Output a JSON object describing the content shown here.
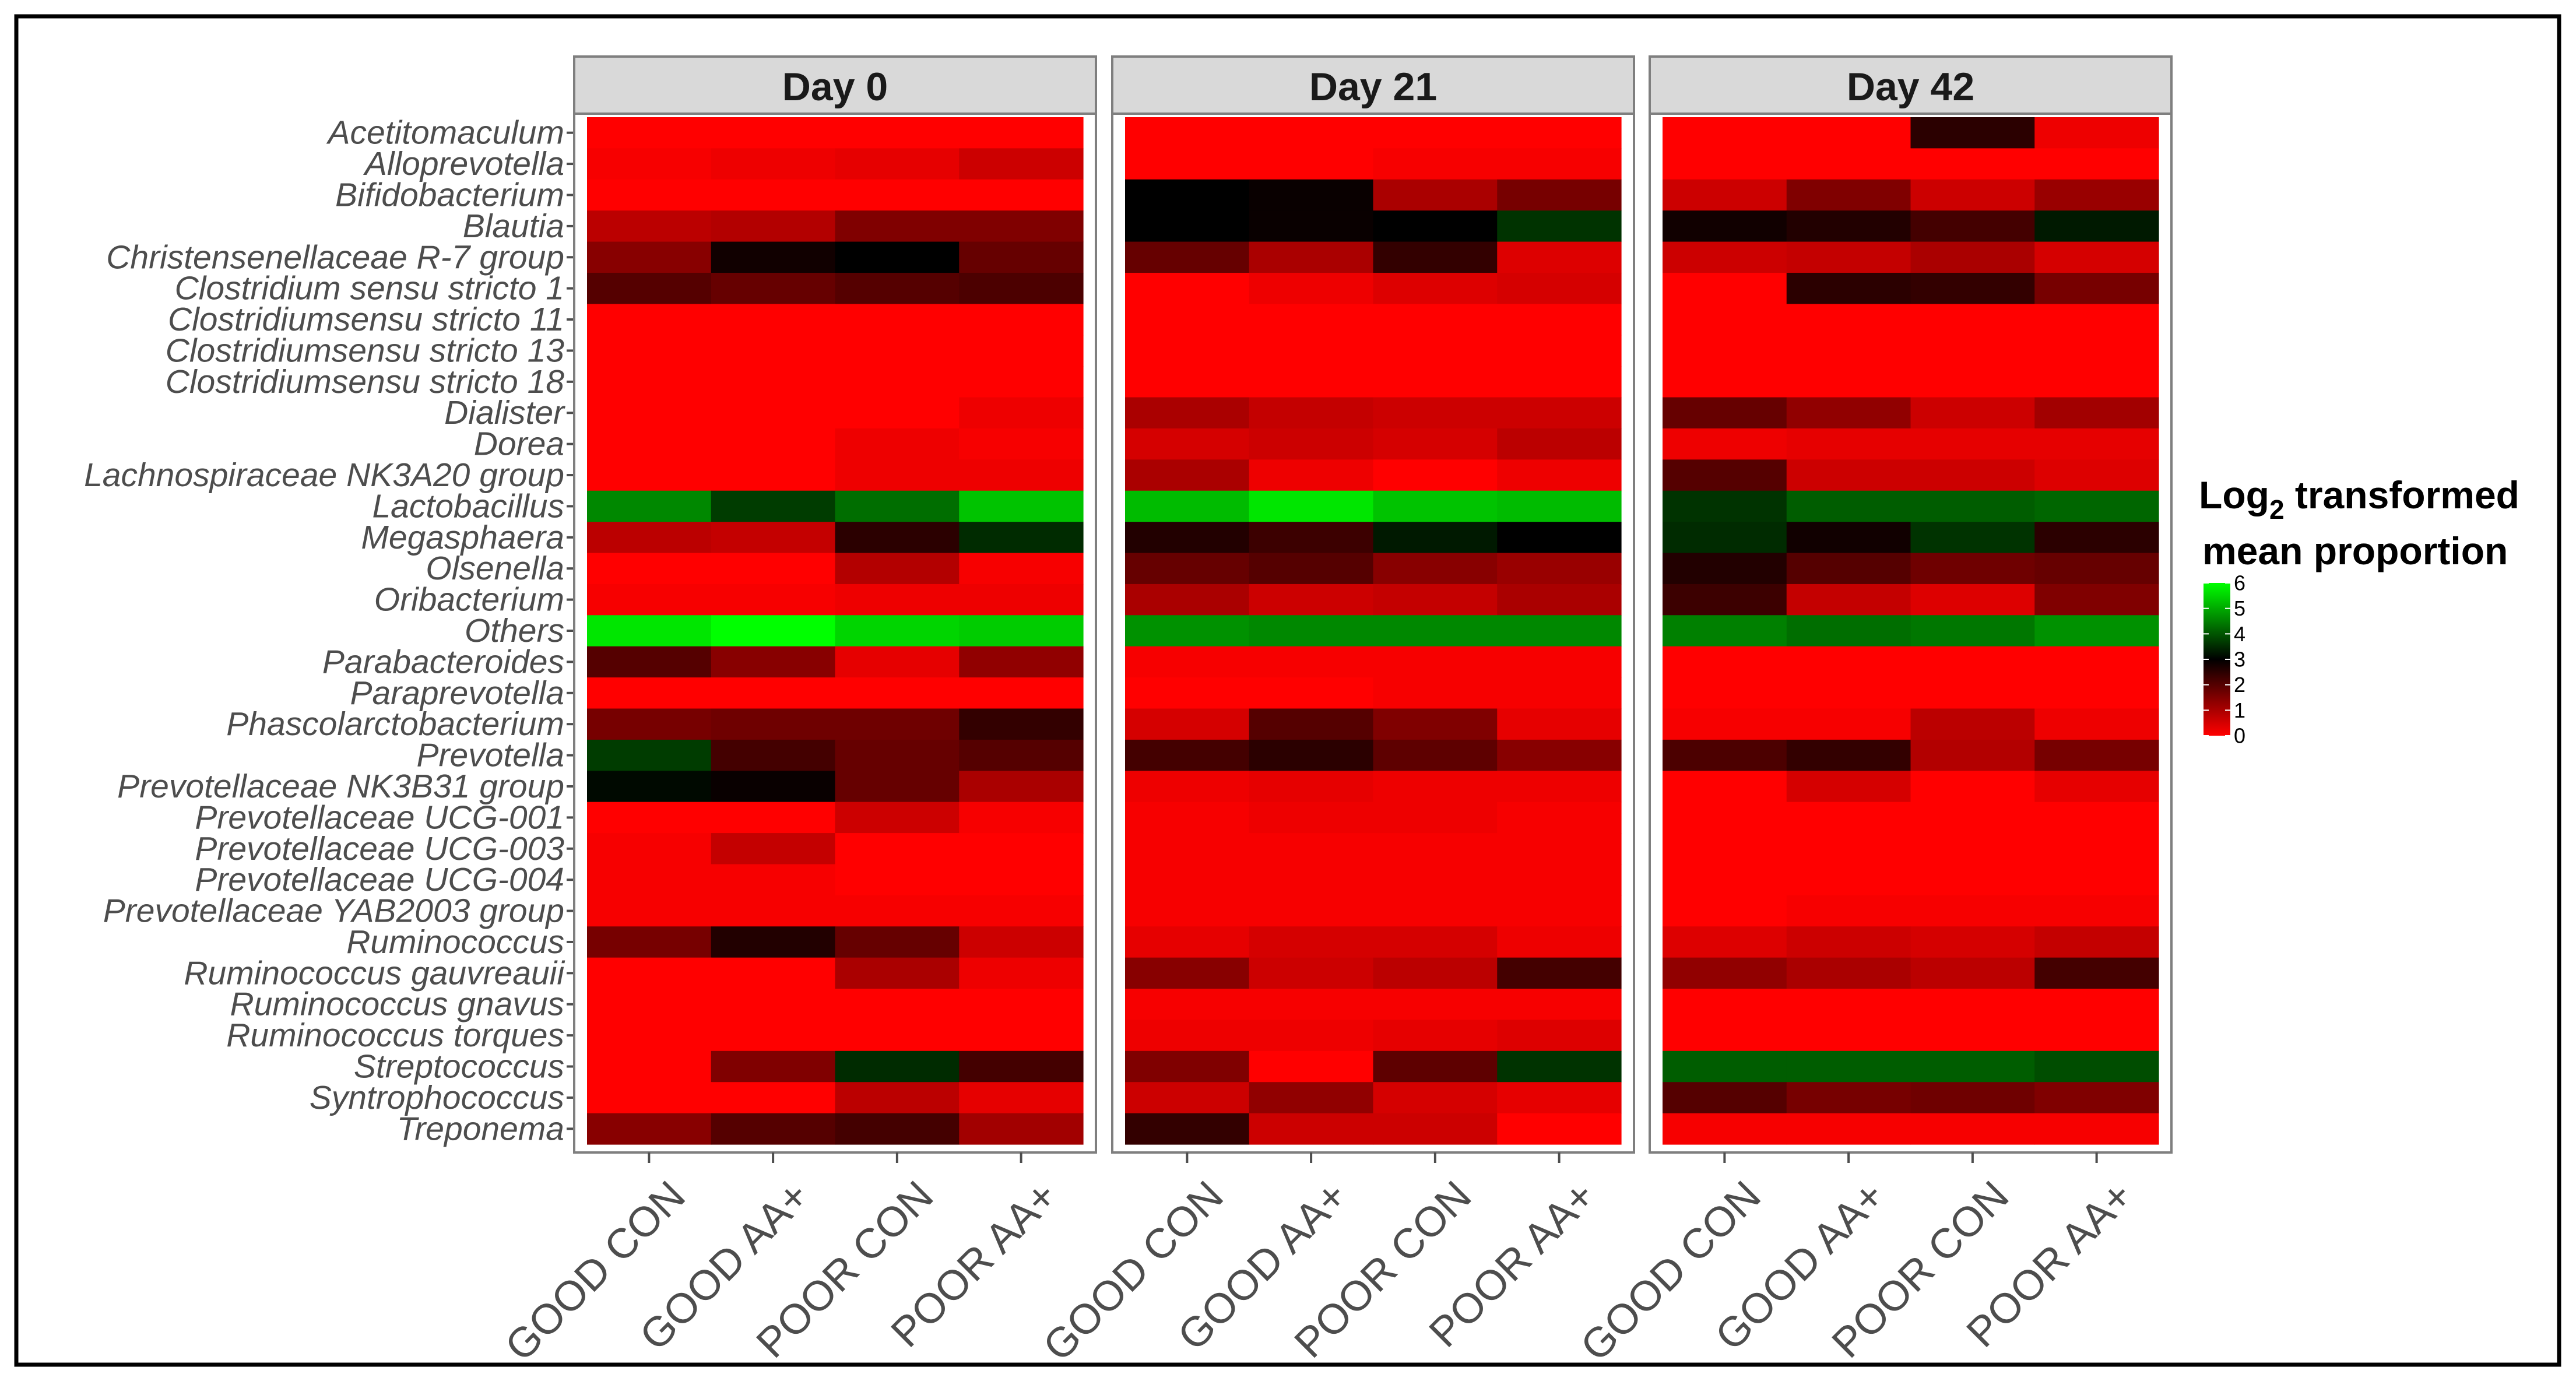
{
  "chart_data": {
    "type": "heatmap",
    "facets": [
      "Day 0",
      "Day 21",
      "Day 42"
    ],
    "groups": [
      "GOOD CON",
      "GOOD AA+",
      "POOR CON",
      "POOR AA+"
    ],
    "genera": [
      "Acetitomaculum",
      "Alloprevotella",
      "Bifidobacterium",
      "Blautia",
      "Christensenellaceae R-7 group",
      "Clostridium sensu stricto 1",
      "Clostridiumsensu stricto 11",
      "Clostridiumsensu stricto 13",
      "Clostridiumsensu stricto 18",
      "Dialister",
      "Dorea",
      "Lachnospiraceae NK3A20 group",
      "Lactobacillus",
      "Megasphaera",
      "Olsenella",
      "Oribacterium",
      "Others",
      "Parabacteroides",
      "Paraprevotella",
      "Phascolarctobacterium",
      "Prevotella",
      "Prevotellaceae NK3B31 group",
      "Prevotellaceae UCG-001",
      "Prevotellaceae UCG-003",
      "Prevotellaceae UCG-004",
      "Prevotellaceae YAB2003 group",
      "Ruminococcus",
      "Ruminococcus gauvreauii",
      "Ruminococcus gnavus",
      "Ruminococcus torques",
      "Streptococcus",
      "Syntrophococcus",
      "Treponema"
    ],
    "values": {
      "Day 0": [
        [
          0.0,
          0.0,
          0.0,
          0.0
        ],
        [
          0.1,
          0.2,
          0.3,
          0.6
        ],
        [
          0.0,
          0.0,
          0.0,
          0.0
        ],
        [
          0.8,
          0.9,
          1.5,
          1.5
        ],
        [
          1.4,
          2.8,
          3.0,
          1.8
        ],
        [
          2.0,
          1.8,
          2.0,
          2.1
        ],
        [
          0.0,
          0.0,
          0.0,
          0.0
        ],
        [
          0.0,
          0.0,
          0.0,
          0.0
        ],
        [
          0.0,
          0.0,
          0.0,
          0.0
        ],
        [
          0.0,
          0.0,
          0.0,
          0.2
        ],
        [
          0.0,
          0.0,
          0.2,
          0.1
        ],
        [
          0.0,
          0.0,
          0.2,
          0.2
        ],
        [
          4.6,
          3.7,
          4.3,
          5.3
        ],
        [
          0.8,
          0.7,
          2.5,
          3.5
        ],
        [
          0.0,
          0.0,
          0.9,
          0.1
        ],
        [
          0.1,
          0.1,
          0.2,
          0.2
        ],
        [
          5.7,
          6.0,
          5.5,
          5.4
        ],
        [
          2.0,
          1.4,
          0.3,
          1.3
        ],
        [
          0.0,
          0.0,
          0.0,
          0.0
        ],
        [
          1.6,
          1.7,
          1.7,
          2.4
        ],
        [
          3.7,
          2.2,
          1.8,
          2.0
        ],
        [
          3.1,
          2.9,
          1.8,
          1.0
        ],
        [
          0.0,
          0.0,
          0.6,
          0.1
        ],
        [
          0.1,
          0.7,
          0.0,
          0.0
        ],
        [
          0.1,
          0.1,
          0.0,
          0.0
        ],
        [
          0.1,
          0.1,
          0.1,
          0.1
        ],
        [
          1.6,
          2.6,
          1.8,
          0.6
        ],
        [
          0.0,
          0.0,
          1.0,
          0.2
        ],
        [
          0.0,
          0.0,
          0.0,
          0.0
        ],
        [
          0.0,
          0.0,
          0.0,
          0.0
        ],
        [
          0.0,
          1.5,
          3.5,
          2.2
        ],
        [
          0.0,
          0.0,
          0.8,
          0.3
        ],
        [
          1.4,
          2.0,
          2.2,
          1.1
        ]
      ],
      "Day 21": [
        [
          0.0,
          0.0,
          0.0,
          0.0
        ],
        [
          0.0,
          0.0,
          0.1,
          0.1
        ],
        [
          3.0,
          2.9,
          1.0,
          1.6
        ],
        [
          3.0,
          2.9,
          3.0,
          3.6
        ],
        [
          1.8,
          1.0,
          2.4,
          0.4
        ],
        [
          0.0,
          0.2,
          0.4,
          0.5
        ],
        [
          0.0,
          0.0,
          0.0,
          0.0
        ],
        [
          0.0,
          0.0,
          0.0,
          0.0
        ],
        [
          0.0,
          0.0,
          0.0,
          0.0
        ],
        [
          1.0,
          0.7,
          0.6,
          0.6
        ],
        [
          0.5,
          0.6,
          0.5,
          0.8
        ],
        [
          1.0,
          0.2,
          0.0,
          0.2
        ],
        [
          5.2,
          5.7,
          5.3,
          5.2
        ],
        [
          2.6,
          2.3,
          3.3,
          3.0
        ],
        [
          1.8,
          2.0,
          1.4,
          1.2
        ],
        [
          1.0,
          0.6,
          0.7,
          1.0
        ],
        [
          4.7,
          4.6,
          4.6,
          4.6
        ],
        [
          0.1,
          0.1,
          0.1,
          0.1
        ],
        [
          0.0,
          0.0,
          0.1,
          0.1
        ],
        [
          0.5,
          2.0,
          1.5,
          0.3
        ],
        [
          2.2,
          2.5,
          1.9,
          1.4
        ],
        [
          0.2,
          0.3,
          0.2,
          0.2
        ],
        [
          0.1,
          0.2,
          0.2,
          0.1
        ],
        [
          0.1,
          0.1,
          0.1,
          0.1
        ],
        [
          0.1,
          0.1,
          0.1,
          0.1
        ],
        [
          0.1,
          0.1,
          0.1,
          0.1
        ],
        [
          0.3,
          0.5,
          0.5,
          0.2
        ],
        [
          1.4,
          0.6,
          0.8,
          2.2
        ],
        [
          0.1,
          0.1,
          0.1,
          0.1
        ],
        [
          0.2,
          0.2,
          0.3,
          0.4
        ],
        [
          1.5,
          0.0,
          1.9,
          3.6
        ],
        [
          0.6,
          1.3,
          0.5,
          0.3
        ],
        [
          2.4,
          0.6,
          0.6,
          0.0
        ]
      ],
      "Day 42": [
        [
          0.0,
          0.0,
          2.5,
          0.2
        ],
        [
          0.0,
          0.0,
          0.0,
          0.0
        ],
        [
          0.6,
          1.5,
          0.6,
          1.2
        ],
        [
          2.8,
          2.6,
          2.2,
          3.3
        ],
        [
          0.6,
          0.7,
          1.0,
          0.5
        ],
        [
          0.0,
          2.5,
          2.4,
          1.6
        ],
        [
          0.0,
          0.0,
          0.0,
          0.0
        ],
        [
          0.0,
          0.0,
          0.0,
          0.0
        ],
        [
          0.0,
          0.0,
          0.0,
          0.0
        ],
        [
          1.8,
          1.3,
          0.6,
          1.1
        ],
        [
          0.2,
          0.3,
          0.3,
          0.3
        ],
        [
          2.0,
          0.6,
          0.6,
          0.4
        ],
        [
          3.6,
          4.1,
          4.1,
          4.2
        ],
        [
          3.5,
          2.8,
          3.6,
          2.5
        ],
        [
          2.6,
          2.0,
          1.7,
          1.8
        ],
        [
          2.3,
          0.7,
          0.4,
          1.5
        ],
        [
          4.5,
          4.3,
          4.4,
          4.7
        ],
        [
          0.0,
          0.0,
          0.0,
          0.0
        ],
        [
          0.0,
          0.0,
          0.0,
          0.0
        ],
        [
          0.1,
          0.1,
          0.8,
          0.2
        ],
        [
          2.1,
          2.4,
          0.9,
          1.6
        ],
        [
          0.0,
          0.5,
          0.0,
          0.3
        ],
        [
          0.0,
          0.0,
          0.0,
          0.0
        ],
        [
          0.0,
          0.0,
          0.0,
          0.0
        ],
        [
          0.0,
          0.0,
          0.0,
          0.0
        ],
        [
          0.0,
          0.1,
          0.1,
          0.1
        ],
        [
          0.4,
          0.6,
          0.5,
          0.7
        ],
        [
          1.3,
          1.0,
          0.8,
          2.2
        ],
        [
          0.0,
          0.0,
          0.0,
          0.0
        ],
        [
          0.0,
          0.0,
          0.0,
          0.0
        ],
        [
          4.1,
          4.1,
          4.1,
          3.9
        ],
        [
          2.0,
          1.6,
          1.7,
          1.5
        ],
        [
          0.1,
          0.1,
          0.1,
          0.1
        ]
      ]
    },
    "legend": {
      "title_prefix": "Log",
      "title_sub": "2",
      "title_line1_suffix": " transformed",
      "title_line2": "mean proportion",
      "ticks": [
        6,
        5,
        4,
        3,
        2,
        1,
        0
      ],
      "range": [
        0,
        6
      ],
      "placement": "right"
    },
    "colors": {
      "low": "#ff0000",
      "mid": "#000000",
      "high": "#00ff00",
      "mid_value": 3,
      "strip_fill": "#d9d9d9",
      "panel_border": "#7f7f7f",
      "outer_border": "#000000",
      "text": "#4d4d4d"
    }
  }
}
